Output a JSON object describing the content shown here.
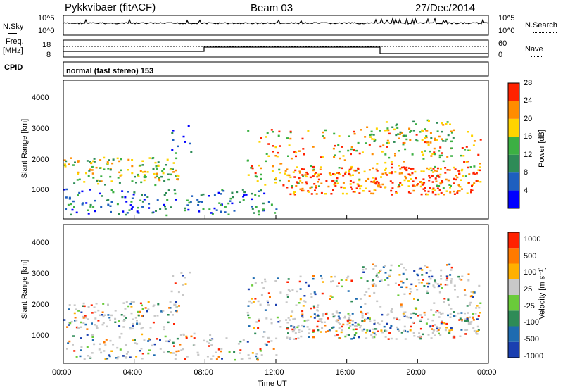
{
  "header": {
    "title": "Pykkvibaer (fitACF)",
    "beam": "Beam 03",
    "date": "27/Dec/2014"
  },
  "sky_panel": {
    "left_label": "N.Sky",
    "right_label": "N.Search",
    "left_ticks": [
      "10^5",
      "10^0"
    ],
    "right_ticks": [
      "10^5",
      "10^0"
    ]
  },
  "freq_panel": {
    "left_label_line1": "Freq.",
    "left_label_line2": "[MHz]",
    "right_label": "Nave",
    "left_ticks": [
      "18",
      "8"
    ],
    "right_ticks": [
      "60",
      "0"
    ]
  },
  "cpid_panel": {
    "label": "CPID",
    "value": "normal (fast stereo) 153"
  },
  "chart_data": [
    {
      "type": "heatmap",
      "name": "power",
      "ylabel": "Slant Range [km]",
      "y_ticks": [
        "1000",
        "2000",
        "3000",
        "4000"
      ],
      "ylim": [
        200,
        4700
      ],
      "colorbar_label": "Power [dB]",
      "colorbar_ticks": [
        "4",
        "8",
        "12",
        "16",
        "20",
        "24",
        "28"
      ],
      "colorbar_colors": [
        "#0000ff",
        "#1e5fbf",
        "#2e8b57",
        "#3cb043",
        "#ffd400",
        "#ff8c00",
        "#ff2200"
      ],
      "colorbar_range": [
        0,
        30
      ]
    },
    {
      "type": "heatmap",
      "name": "velocity",
      "ylabel": "Slant Range [km]",
      "y_ticks": [
        "1000",
        "2000",
        "3000",
        "4000"
      ],
      "ylim": [
        200,
        4700
      ],
      "colorbar_label": "Velocity [m s⁻¹]",
      "colorbar_ticks": [
        "1000",
        "500",
        "100",
        "25",
        "-25",
        "-100",
        "-500",
        "-1000"
      ],
      "colorbar_colors": [
        "#1a3fb0",
        "#1e6bb0",
        "#2e8b57",
        "#6acb3a",
        "#c8c8c8",
        "#ffb000",
        "#ff7a00",
        "#ff2200"
      ]
    }
  ],
  "x_axis": {
    "ticks": [
      "00:00",
      "04:00",
      "08:00",
      "12:00",
      "16:00",
      "20:00",
      "00:00"
    ],
    "xlabel": "Time UT"
  }
}
